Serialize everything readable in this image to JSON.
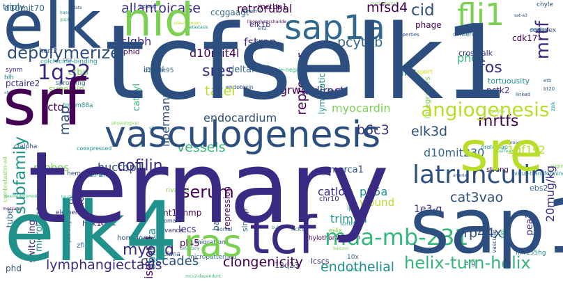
{
  "colors": {
    "dark_purple": "#440154",
    "indigo": "#3b2a84",
    "blue": "#31688e",
    "slate": "#2c4f7f",
    "teal": "#21918c",
    "seagreen": "#35b779",
    "lime": "#7ad151",
    "yellowgreen": "#b8de29",
    "light_yellow": "#d8e219"
  },
  "words": [
    {
      "text": "tcfselk1"
    },
    {
      "text": "ternary"
    },
    {
      "text": "elk4"
    },
    {
      "text": "sap1"
    },
    {
      "text": "elk"
    },
    {
      "text": "srf"
    },
    {
      "text": "nid"
    },
    {
      "text": "sre"
    },
    {
      "text": "vasculogenesis"
    },
    {
      "text": "ras"
    },
    {
      "text": "tcf"
    },
    {
      "text": "sap1a"
    },
    {
      "text": "fli1"
    },
    {
      "text": "1q32"
    },
    {
      "text": "latrunculin"
    },
    {
      "text": "mda-mb-231"
    },
    {
      "text": "angiogenesis"
    },
    {
      "text": "depolymerize"
    },
    {
      "text": "allantoicase"
    },
    {
      "text": "mrtfs"
    },
    {
      "text": "mrtf"
    },
    {
      "text": "cofilin"
    },
    {
      "text": "subfamily"
    },
    {
      "text": "serum"
    },
    {
      "text": "myocd"
    },
    {
      "text": "cascades"
    },
    {
      "text": "clongenicity"
    },
    {
      "text": "helix-turn-helix"
    },
    {
      "text": "endothelial"
    },
    {
      "text": "lymphangiectasis"
    },
    {
      "text": "sres"
    },
    {
      "text": "tatei"
    },
    {
      "text": "fos"
    },
    {
      "text": "cid"
    },
    {
      "text": "mfsd4"
    },
    {
      "text": "vessels"
    },
    {
      "text": "pcyt1b"
    },
    {
      "text": "repressor"
    },
    {
      "text": "b6c3"
    },
    {
      "text": "elk3d"
    },
    {
      "text": "huctbp1"
    },
    {
      "text": "cat3vao"
    },
    {
      "text": "xrp44x"
    },
    {
      "text": "trim2a"
    },
    {
      "text": "catlop"
    },
    {
      "text": "1gf1s2"
    },
    {
      "text": "d10mit230"
    },
    {
      "text": "grwd"
    },
    {
      "text": "indirect"
    },
    {
      "text": "endocardium"
    },
    {
      "text": "myocardin"
    },
    {
      "text": "allc"
    },
    {
      "text": "phds"
    },
    {
      "text": "map"
    },
    {
      "text": "libermann"
    },
    {
      "text": "d10mit4l"
    },
    {
      "text": "fstrap"
    },
    {
      "text": "slgbh"
    },
    {
      "text": "retrorubal"
    },
    {
      "text": "cctq"
    },
    {
      "text": "probes"
    },
    {
      "text": "microtube"
    },
    {
      "text": "switching"
    },
    {
      "text": "obinata"
    },
    {
      "text": "isecond"
    },
    {
      "text": "p85a"
    },
    {
      "text": "wound"
    },
    {
      "text": "1e3-g"
    },
    {
      "text": "lecs"
    },
    {
      "text": "pl45"
    },
    {
      "text": "to2"
    },
    {
      "text": "pctaire2"
    },
    {
      "text": "synemin"
    },
    {
      "text": "cat3yl"
    },
    {
      "text": "ctbp"
    },
    {
      "text": "deltafev1"
    },
    {
      "text": "izumi"
    },
    {
      "text": "ophid"
    },
    {
      "text": "elk1b"
    },
    {
      "text": "ccggaagt"
    },
    {
      "text": "mctbp1"
    },
    {
      "text": "phage"
    },
    {
      "text": "cdk17"
    },
    {
      "text": "crosstalk"
    },
    {
      "text": "20mug/kg"
    },
    {
      "text": "pea3"
    },
    {
      "text": "hpk1"
    },
    {
      "text": "6c2"
    },
    {
      "text": "smarca1"
    },
    {
      "text": "mt1-mmp"
    },
    {
      "text": "basal"
    },
    {
      "text": "repression"
    },
    {
      "text": "pctk2"
    },
    {
      "text": "latb"
    },
    {
      "text": "lymphatic"
    },
    {
      "text": "integrators"
    },
    {
      "text": "tortuousity"
    },
    {
      "text": "d10mit70"
    },
    {
      "text": "triply"
    },
    {
      "text": "synm"
    },
    {
      "text": "hlh"
    },
    {
      "text": "homology"
    },
    {
      "text": "tube"
    },
    {
      "text": "slmap"
    },
    {
      "text": "phd"
    },
    {
      "text": "zfin"
    },
    {
      "text": "lcscs"
    },
    {
      "text": "12q23"
    },
    {
      "text": "erg"
    },
    {
      "text": "ebs2"
    },
    {
      "text": "strong"
    },
    {
      "text": "export"
    },
    {
      "text": "d10mit95"
    },
    {
      "text": "endotoxin"
    },
    {
      "text": "triple-negative"
    },
    {
      "text": "ets1"
    },
    {
      "text": "complex"
    },
    {
      "text": "conserved"
    },
    {
      "text": "endoa"
    },
    {
      "text": "chyle"
    },
    {
      "text": "hemangiogenic"
    },
    {
      "text": "full-length"
    },
    {
      "text": "ctalpha"
    },
    {
      "text": "element"
    },
    {
      "text": "coexpressed"
    },
    {
      "text": "pathologies"
    },
    {
      "text": "combretastin-a4"
    },
    {
      "text": "rivalled"
    },
    {
      "text": "domain"
    },
    {
      "text": "vance"
    },
    {
      "text": "aortal"
    },
    {
      "text": "nck1"
    },
    {
      "text": "ej4x"
    },
    {
      "text": "sorbs1"
    },
    {
      "text": "lubricin"
    },
    {
      "text": "lps"
    },
    {
      "text": "chylothorax"
    },
    {
      "text": "chr10"
    },
    {
      "text": "primitive"
    },
    {
      "text": "micropatterned"
    },
    {
      "text": "plana"
    },
    {
      "text": "migration"
    },
    {
      "text": "10x"
    },
    {
      "text": "smcs"
    },
    {
      "text": "vascular"
    },
    {
      "text": "mir155hg"
    },
    {
      "text": "plgl"
    },
    {
      "text": "virus-transforming"
    },
    {
      "text": "sugimoto"
    },
    {
      "text": "zak"
    },
    {
      "text": "inroad"
    },
    {
      "text": "upstream"
    },
    {
      "text": "arteries"
    },
    {
      "text": "protomap"
    },
    {
      "text": "tmem88a"
    },
    {
      "text": "herf2"
    },
    {
      "text": "colchicine-binding"
    },
    {
      "text": "cat3"
    },
    {
      "text": "ebs1"
    },
    {
      "text": "sprouting"
    },
    {
      "text": "metastasis"
    },
    {
      "text": "fevr"
    },
    {
      "text": "belong"
    },
    {
      "text": "isolate"
    },
    {
      "text": "basc"
    },
    {
      "text": "gupta"
    },
    {
      "text": "sites"
    },
    {
      "text": "filament"
    },
    {
      "text": "corticotectal"
    },
    {
      "text": "properties"
    },
    {
      "text": "elk2"
    },
    {
      "text": "sat-a3"
    },
    {
      "text": "etb"
    },
    {
      "text": "bt20"
    },
    {
      "text": "linked"
    },
    {
      "text": "pcytla"
    },
    {
      "text": "message"
    },
    {
      "text": "dexmedetomidine"
    },
    {
      "text": "healing"
    },
    {
      "text": "physiological"
    },
    {
      "text": "mcv2-dependent"
    },
    {
      "text": "cefactory"
    },
    {
      "text": "baicovc"
    },
    {
      "text": "bub3"
    },
    {
      "text": "lipopolysaccharide"
    },
    {
      "text": "plasminogen"
    },
    {
      "text": "ntc"
    },
    {
      "text": "phds2"
    },
    {
      "text": "mgsk"
    },
    {
      "text": "weakly"
    }
  ]
}
